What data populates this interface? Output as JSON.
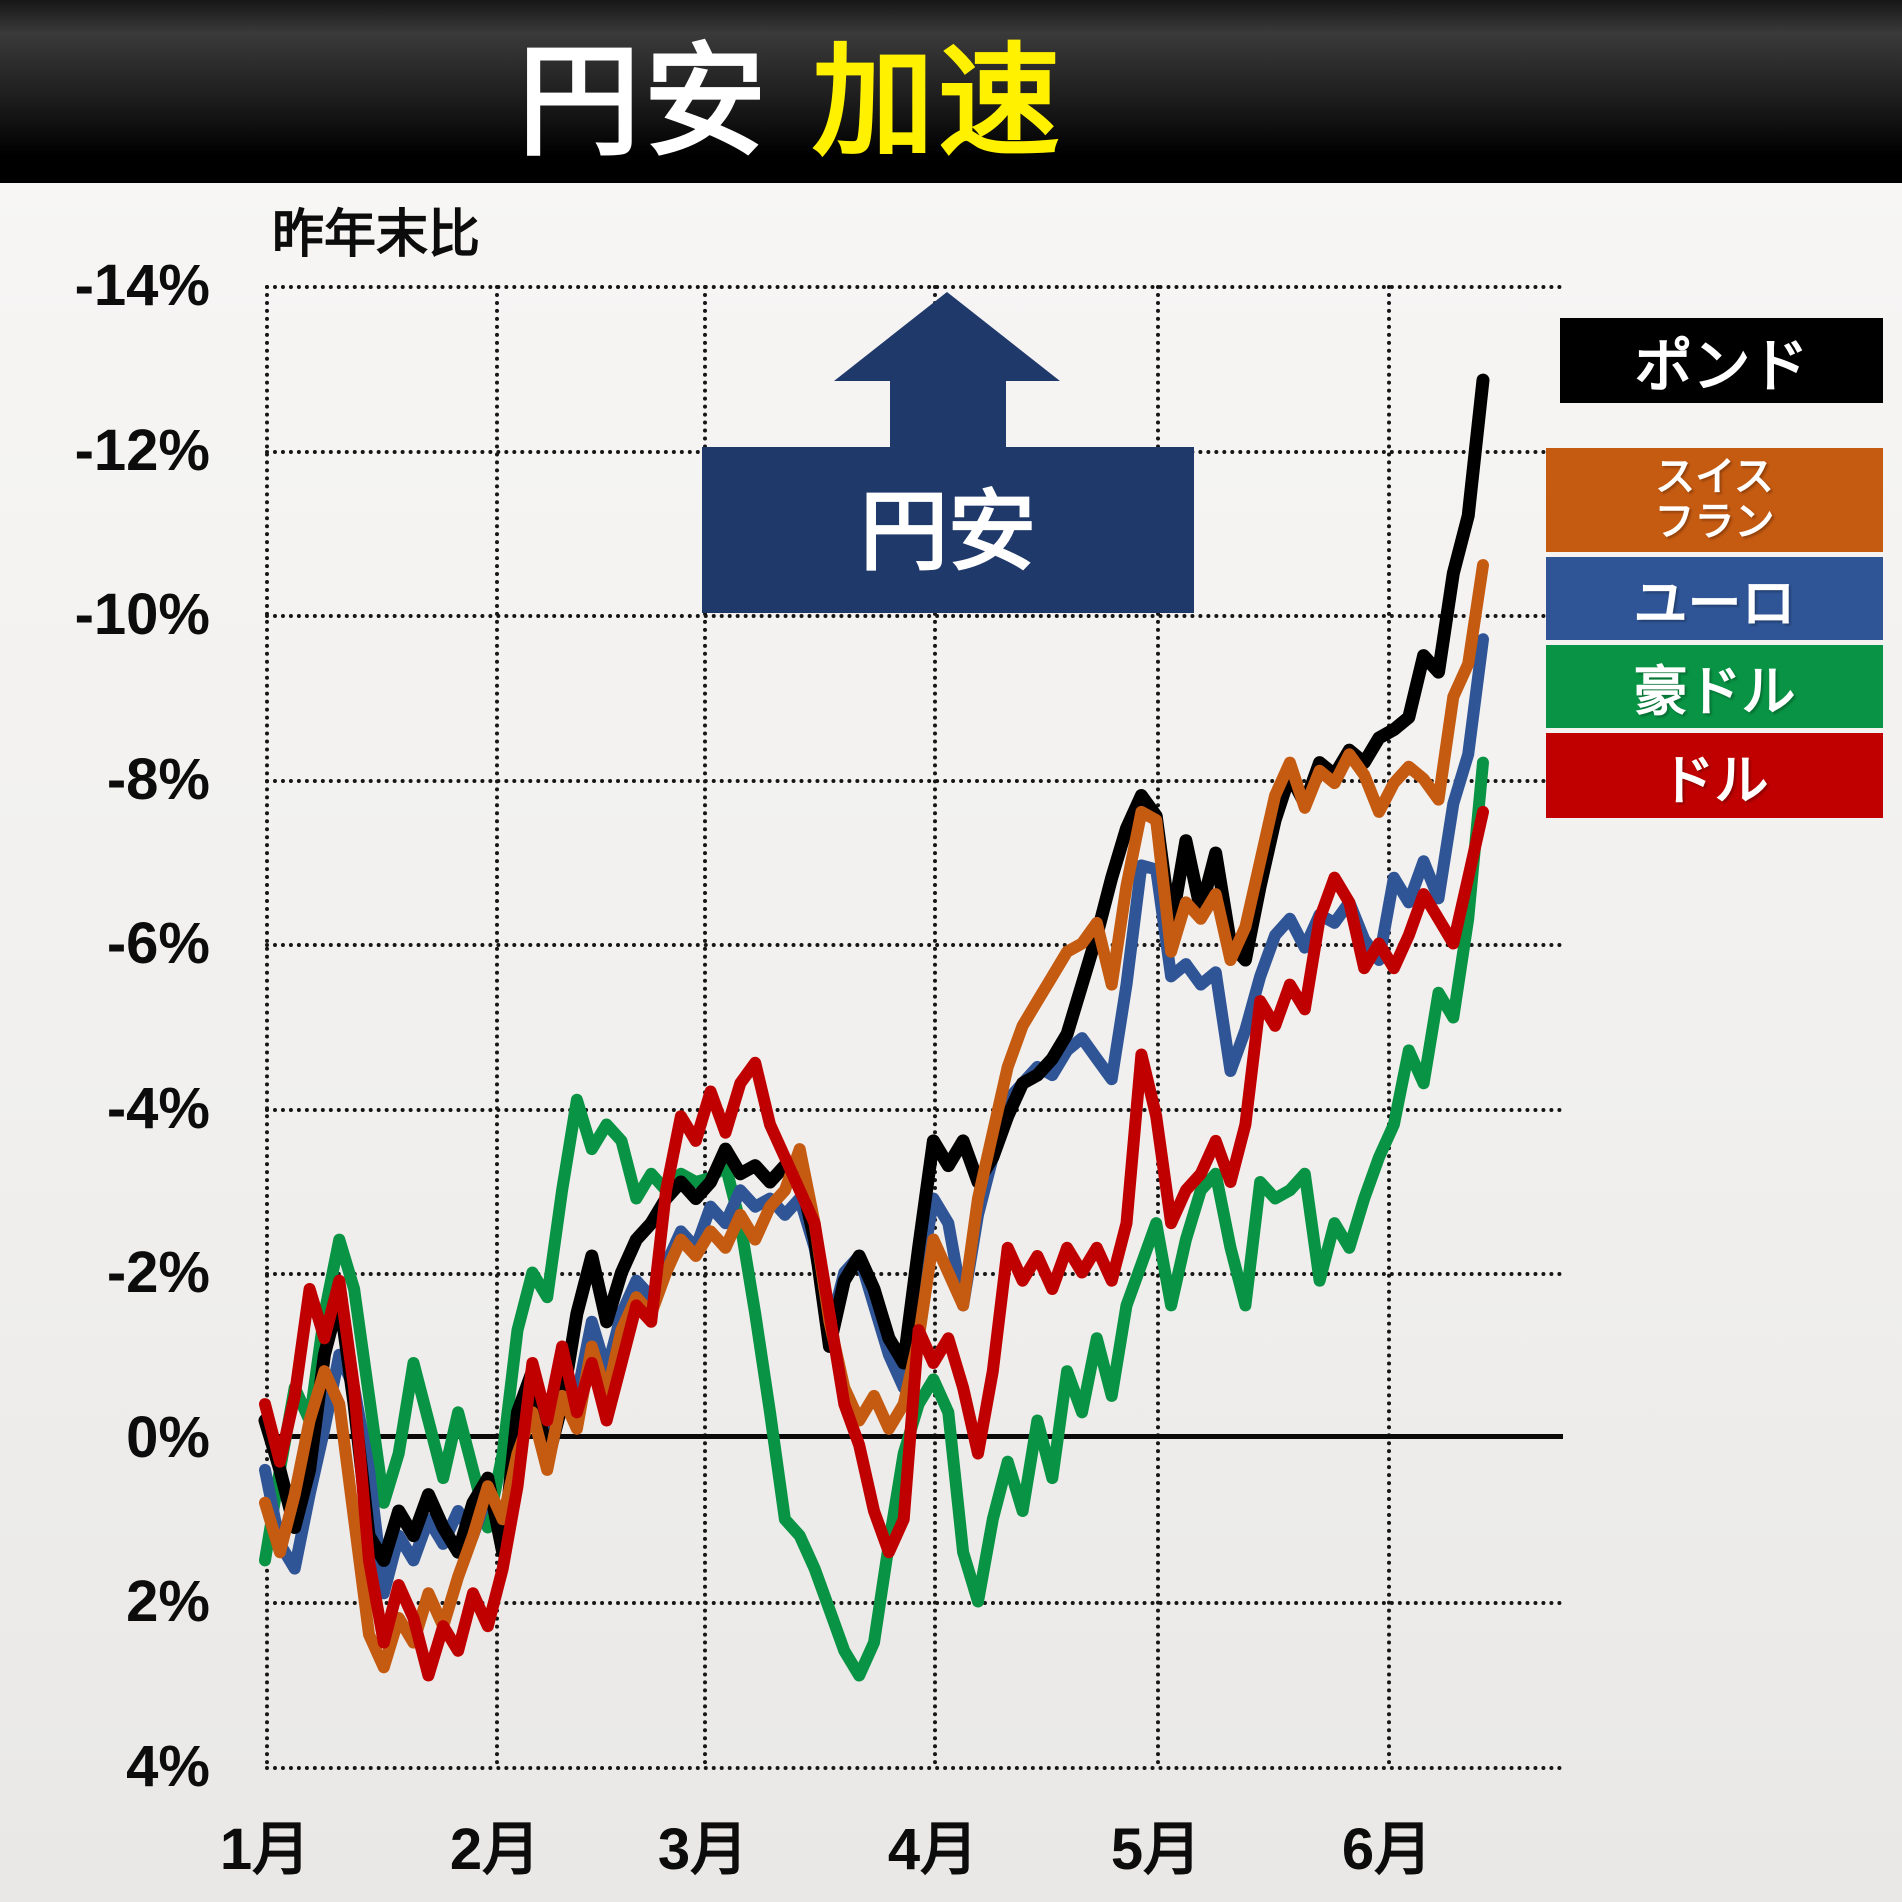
{
  "header": {
    "title_white": "円安",
    "title_yellow": "加速"
  },
  "note": "昨年末比",
  "annotation": {
    "label": "円安",
    "color": "#20396B"
  },
  "axis": {
    "y_ticks": [
      "-14%",
      "-12%",
      "-10%",
      "-8%",
      "-6%",
      "-4%",
      "-2%",
      "0%",
      "2%",
      "4%"
    ],
    "x_ticks": [
      "1月",
      "2月",
      "3月",
      "4月",
      "5月",
      "6月"
    ]
  },
  "legend": {
    "items": [
      {
        "label": "ポンド",
        "color": "#000000"
      },
      {
        "label": "スイス\nフラン",
        "color": "#C55A11"
      },
      {
        "label": "ユーロ",
        "color": "#2F5597"
      },
      {
        "label": "豪ドル",
        "color": "#089444"
      },
      {
        "label": "ドル",
        "color": "#C00000"
      }
    ]
  },
  "chart_data": {
    "type": "line",
    "title": "円安 加速",
    "subtitle_note": "昨年末比",
    "ylabel": "昨年末比 (%)",
    "ylim": [
      -14,
      4
    ],
    "y_axis_inverted": true,
    "grid": "dotted",
    "legend_position": "right",
    "x_unit": "days since Jan 1 (2-day step)",
    "x_month_ticks": {
      "labels": [
        "1月",
        "2月",
        "3月",
        "4月",
        "5月",
        "6月"
      ],
      "day_offsets": [
        0,
        31,
        59,
        90,
        120,
        151
      ]
    },
    "x": [
      0,
      2,
      4,
      6,
      8,
      10,
      12,
      14,
      16,
      18,
      20,
      22,
      24,
      26,
      28,
      30,
      32,
      34,
      36,
      38,
      40,
      42,
      44,
      46,
      48,
      50,
      52,
      54,
      56,
      58,
      60,
      62,
      64,
      66,
      68,
      70,
      72,
      74,
      76,
      78,
      80,
      82,
      84,
      86,
      88,
      90,
      92,
      94,
      96,
      98,
      100,
      102,
      104,
      106,
      108,
      110,
      112,
      114,
      116,
      118,
      120,
      122,
      124,
      126,
      128,
      130,
      132,
      134,
      136,
      138,
      140,
      142,
      144,
      146,
      148,
      150,
      152,
      154,
      156,
      158,
      160,
      162,
      164
    ],
    "draw_order": [
      3,
      2,
      0,
      1,
      4
    ],
    "series": [
      {
        "id": "pound",
        "name": "ポンド",
        "color": "#000000",
        "width": 13,
        "values": [
          -0.2,
          0.4,
          1.1,
          0.4,
          -1.0,
          -1.7,
          -0.4,
          1.2,
          1.5,
          0.9,
          1.2,
          0.7,
          1.1,
          1.4,
          0.8,
          0.5,
          1.4,
          -0.3,
          -0.8,
          0.3,
          -0.4,
          -1.5,
          -2.2,
          -1.4,
          -2.0,
          -2.4,
          -2.6,
          -2.9,
          -3.1,
          -2.9,
          -3.1,
          -3.5,
          -3.2,
          -3.3,
          -3.1,
          -3.3,
          -3.2,
          -2.4,
          -1.1,
          -1.9,
          -2.2,
          -1.8,
          -1.2,
          -0.9,
          -2.3,
          -3.6,
          -3.3,
          -3.6,
          -3.1,
          -3.4,
          -3.9,
          -4.3,
          -4.4,
          -4.6,
          -4.9,
          -5.5,
          -6.1,
          -6.8,
          -7.4,
          -7.8,
          -7.55,
          -6.2,
          -7.25,
          -6.4,
          -7.1,
          -6.0,
          -5.8,
          -6.7,
          -7.5,
          -8.05,
          -7.7,
          -8.2,
          -8.05,
          -8.35,
          -8.2,
          -8.5,
          -8.6,
          -8.75,
          -9.5,
          -9.3,
          -10.5,
          -11.2,
          -12.85
        ]
      },
      {
        "id": "swiss-franc",
        "name": "スイスフラン",
        "color": "#C55A11",
        "width": 12,
        "values": [
          0.8,
          1.4,
          0.7,
          -0.2,
          -0.8,
          -0.4,
          1.0,
          2.4,
          2.8,
          2.2,
          2.5,
          1.9,
          2.3,
          1.7,
          1.2,
          0.6,
          1.0,
          0.2,
          -0.3,
          0.4,
          -0.5,
          -0.1,
          -1.1,
          -0.5,
          -1.3,
          -1.7,
          -1.5,
          -2.0,
          -2.4,
          -2.2,
          -2.5,
          -2.3,
          -2.7,
          -2.4,
          -2.8,
          -3.0,
          -3.5,
          -2.6,
          -1.4,
          -0.6,
          -0.2,
          -0.5,
          -0.1,
          -0.4,
          -1.2,
          -2.4,
          -2.0,
          -1.6,
          -2.9,
          -3.7,
          -4.5,
          -5.0,
          -5.3,
          -5.6,
          -5.9,
          -6.0,
          -6.25,
          -5.5,
          -6.7,
          -7.6,
          -7.5,
          -5.9,
          -6.5,
          -6.3,
          -6.6,
          -5.8,
          -6.2,
          -7.0,
          -7.8,
          -8.2,
          -7.65,
          -8.1,
          -7.95,
          -8.3,
          -8.05,
          -7.6,
          -7.95,
          -8.15,
          -8.0,
          -7.75,
          -9.0,
          -9.4,
          -10.6
        ]
      },
      {
        "id": "euro",
        "name": "ユーロ",
        "color": "#2F5597",
        "width": 12,
        "values": [
          0.4,
          1.3,
          1.6,
          0.7,
          -0.1,
          -1.0,
          -0.6,
          0.4,
          1.9,
          1.2,
          1.5,
          1.0,
          1.3,
          0.9,
          1.2,
          0.7,
          1.2,
          0.1,
          -0.6,
          0.1,
          -0.9,
          -0.5,
          -1.4,
          -0.8,
          -1.5,
          -1.9,
          -1.7,
          -2.1,
          -2.5,
          -2.3,
          -2.8,
          -2.6,
          -3.0,
          -2.8,
          -2.9,
          -2.7,
          -2.9,
          -2.3,
          -1.3,
          -2.0,
          -2.2,
          -1.6,
          -1.0,
          -0.6,
          -1.8,
          -2.9,
          -2.6,
          -1.6,
          -2.7,
          -3.4,
          -4.1,
          -4.3,
          -4.5,
          -4.4,
          -4.7,
          -4.85,
          -4.6,
          -4.35,
          -5.5,
          -6.95,
          -6.9,
          -5.6,
          -5.75,
          -5.5,
          -5.65,
          -4.45,
          -4.95,
          -5.6,
          -6.1,
          -6.3,
          -5.95,
          -6.35,
          -6.25,
          -6.5,
          -6.05,
          -5.8,
          -6.8,
          -6.5,
          -7.0,
          -6.55,
          -7.7,
          -8.3,
          -9.7
        ]
      },
      {
        "id": "australian-dollar",
        "name": "豪ドル",
        "color": "#089444",
        "width": 12,
        "values": [
          1.5,
          0.4,
          -0.6,
          -0.2,
          -1.5,
          -2.4,
          -1.8,
          -0.5,
          0.8,
          0.2,
          -0.9,
          -0.2,
          0.5,
          -0.3,
          0.4,
          1.1,
          0.2,
          -1.3,
          -2.0,
          -1.7,
          -3.0,
          -4.1,
          -3.5,
          -3.8,
          -3.6,
          -2.9,
          -3.2,
          -3.0,
          -3.2,
          -3.1,
          -3.15,
          -3.3,
          -2.6,
          -1.5,
          -0.3,
          1.0,
          1.2,
          1.6,
          2.1,
          2.6,
          2.9,
          2.5,
          1.3,
          0.2,
          -0.4,
          -0.7,
          -0.3,
          1.4,
          2.0,
          1.0,
          0.3,
          0.9,
          -0.2,
          0.5,
          -0.8,
          -0.3,
          -1.2,
          -0.5,
          -1.6,
          -2.1,
          -2.6,
          -1.6,
          -2.4,
          -3.0,
          -3.2,
          -2.3,
          -1.6,
          -3.1,
          -2.9,
          -3.0,
          -3.2,
          -1.9,
          -2.6,
          -2.3,
          -2.9,
          -3.4,
          -3.8,
          -4.7,
          -4.3,
          -5.4,
          -5.1,
          -6.3,
          -8.2
        ]
      },
      {
        "id": "dollar",
        "name": "ドル",
        "color": "#C00000",
        "width": 12,
        "values": [
          -0.4,
          0.3,
          -0.5,
          -1.8,
          -1.2,
          -1.9,
          -0.6,
          1.5,
          2.5,
          1.8,
          2.2,
          2.9,
          2.3,
          2.6,
          1.9,
          2.3,
          1.6,
          0.6,
          -0.9,
          -0.2,
          -1.1,
          -0.3,
          -0.9,
          -0.2,
          -0.9,
          -1.6,
          -1.4,
          -3.0,
          -3.9,
          -3.6,
          -4.2,
          -3.7,
          -4.3,
          -4.55,
          -3.8,
          -3.4,
          -3.0,
          -2.6,
          -1.5,
          -0.4,
          0.1,
          0.9,
          1.4,
          1.0,
          -1.3,
          -0.9,
          -1.2,
          -0.6,
          0.2,
          -0.8,
          -2.3,
          -1.9,
          -2.2,
          -1.8,
          -2.3,
          -2.0,
          -2.3,
          -1.9,
          -2.6,
          -4.65,
          -3.9,
          -2.6,
          -3.0,
          -3.2,
          -3.6,
          -3.1,
          -3.8,
          -5.3,
          -5.0,
          -5.5,
          -5.2,
          -6.3,
          -6.8,
          -6.5,
          -5.7,
          -6.0,
          -5.7,
          -6.1,
          -6.6,
          -6.3,
          -6.0,
          -6.8,
          -7.6
        ]
      }
    ]
  }
}
